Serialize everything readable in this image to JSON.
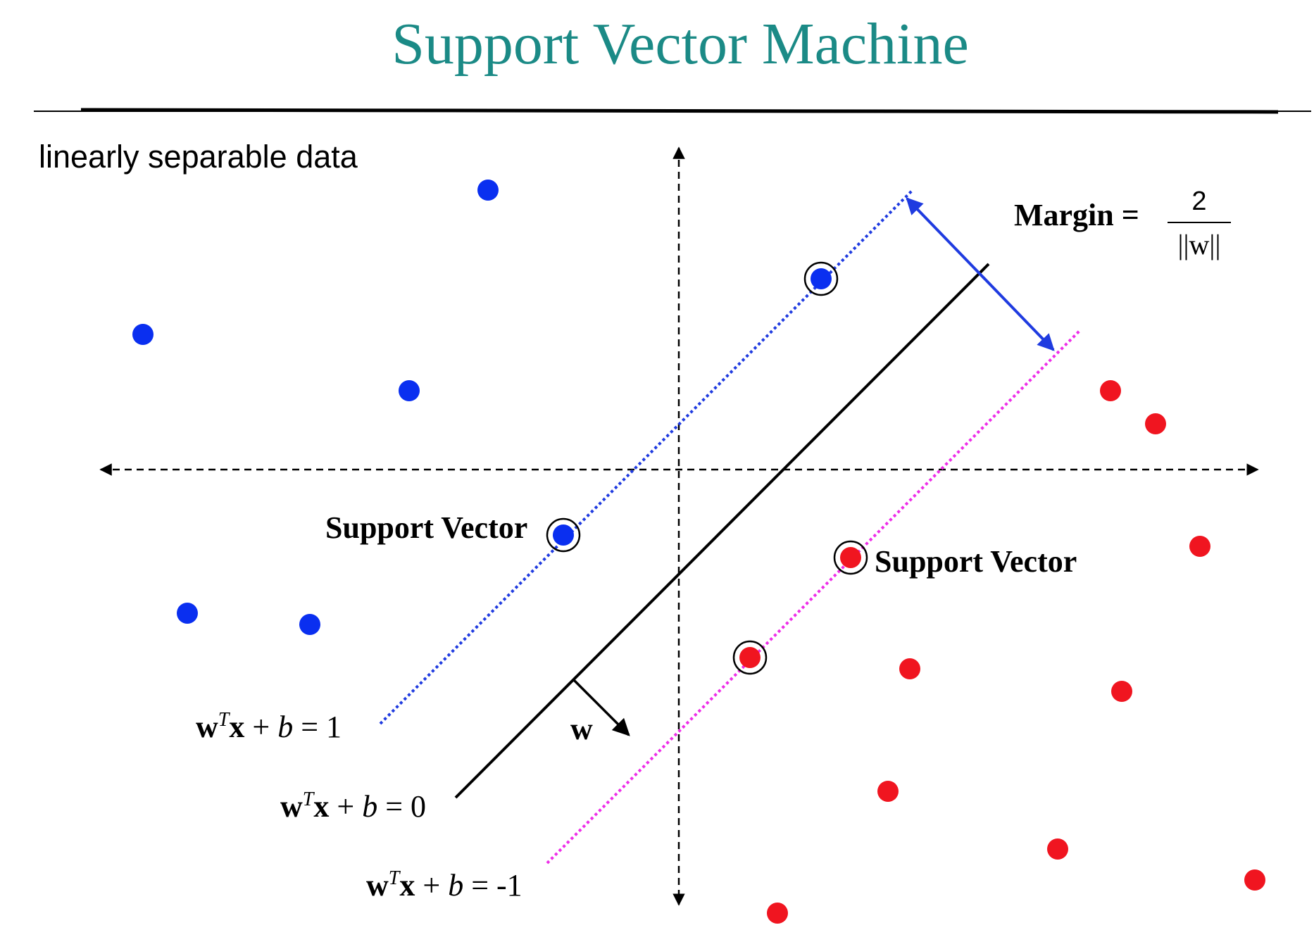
{
  "slide": {
    "title": "Support Vector Machine",
    "subtitle": "linearly separable data"
  },
  "colors": {
    "title": "#1b8a86",
    "positive_class": "#0a2ff0",
    "negative_class": "#f01520",
    "positive_margin_line": "#1f3be0",
    "negative_margin_line": "#ee2ee8",
    "hyperplane": "#000000",
    "margin_arrow": "#1f3be0"
  },
  "labels": {
    "margin_label": "Margin =",
    "margin_numerator": "2",
    "margin_denominator": "||w||",
    "support_vector_left": "Support Vector",
    "support_vector_right": "Support Vector",
    "w_vector": "w"
  },
  "equations": [
    {
      "w": "w",
      "T": "T",
      "x": "x",
      "rest": " + ",
      "b": "b",
      "rhs": " = 1"
    },
    {
      "w": "w",
      "T": "T",
      "x": "x",
      "rest": " + ",
      "b": "b",
      "rhs": " = 0"
    },
    {
      "w": "w",
      "T": "T",
      "x": "x",
      "rest": " + ",
      "b": "b",
      "rhs": " = -1"
    }
  ],
  "points": {
    "blue": [
      {
        "support": false
      },
      {
        "support": false
      },
      {
        "support": false
      },
      {
        "support": true
      },
      {
        "support": true
      },
      {
        "support": false
      },
      {
        "support": false
      }
    ],
    "red": [
      {
        "support": false
      },
      {
        "support": false
      },
      {
        "support": false
      },
      {
        "support": true
      },
      {
        "support": true
      },
      {
        "support": false
      },
      {
        "support": false
      },
      {
        "support": false
      },
      {
        "support": false
      },
      {
        "support": false
      },
      {
        "support": false
      }
    ]
  }
}
